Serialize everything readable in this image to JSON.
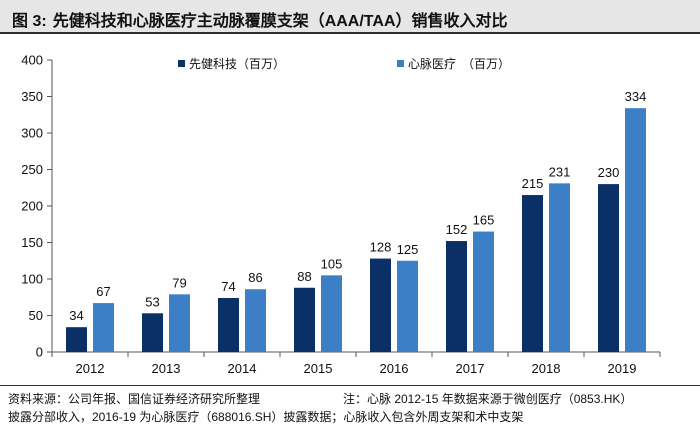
{
  "figure": {
    "label": "图 3:",
    "title": "先健科技和心脉医疗主动脉覆膜支架（AAA/TAA）销售收入对比"
  },
  "chart_data": {
    "type": "bar",
    "categories": [
      "2012",
      "2013",
      "2014",
      "2015",
      "2016",
      "2017",
      "2018",
      "2019"
    ],
    "series": [
      {
        "name": "先健科技（百万）",
        "color": "#0b2f67",
        "values": [
          34,
          53,
          74,
          88,
          128,
          152,
          215,
          230
        ]
      },
      {
        "name": "心脉医疗　（百万）",
        "color": "#3d7fc6",
        "values": [
          67,
          79,
          86,
          105,
          125,
          165,
          231,
          334
        ]
      }
    ],
    "ylim": [
      0,
      400
    ],
    "yticks": [
      0,
      50,
      100,
      150,
      200,
      250,
      300,
      350,
      400
    ],
    "xlabel": "",
    "ylabel": "",
    "legend_position": "top"
  },
  "footer": {
    "source": "资料来源：公司年报、国信证券经济研究所整理",
    "note_line1": "注：心脉 2012-15 年数据来源于微创医疗（0853.HK）",
    "note_line2": "披露分部收入，2016-19 为心脉医疗（688016.SH）披露数据；心脉收入包含外周支架和术中支架"
  }
}
